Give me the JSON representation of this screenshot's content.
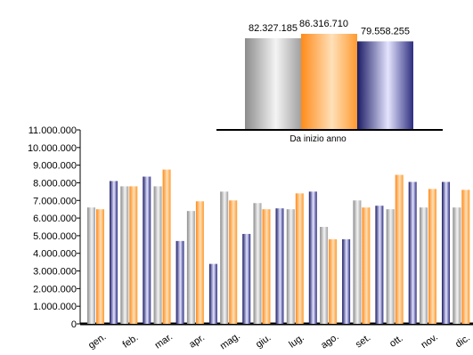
{
  "chart_data": [
    {
      "type": "bar",
      "title": "",
      "xlabel": "Da inizio anno",
      "ylabel": "",
      "series": [
        {
          "values": [
            82327185
          ]
        },
        {
          "values": [
            86316710
          ]
        },
        {
          "values": [
            79558255
          ]
        }
      ],
      "value_labels": [
        "82.327.185",
        "86.316.710",
        "79.558.255"
      ],
      "legend": "none",
      "grid": false
    },
    {
      "type": "bar",
      "title": "",
      "xlabel": "",
      "ylabel": "",
      "categories": [
        "gen.",
        "feb.",
        "mar.",
        "apr.",
        "mag.",
        "giu.",
        "lug.",
        "ago.",
        "set.",
        "ott.",
        "nov.",
        "dic."
      ],
      "ylim": [
        0,
        11000000
      ],
      "yticks": [
        0,
        1000000,
        2000000,
        3000000,
        4000000,
        5000000,
        6000000,
        7000000,
        8000000,
        9000000,
        10000000,
        11000000
      ],
      "ytick_labels": [
        "0",
        "1.000.000",
        "2.000.000",
        "3.000.000",
        "4.000.000",
        "5.000.000",
        "6.000.000",
        "7.000.000",
        "8.000.000",
        "9.000.000",
        "10.000.000",
        "11.000.000"
      ],
      "series": [
        {
          "values": [
            6600000,
            7800000,
            7800000,
            6400000,
            7500000,
            6850000,
            6500000,
            5500000,
            7000000,
            6500000,
            6600000,
            6600000
          ]
        },
        {
          "values": [
            6500000,
            7800000,
            8750000,
            6950000,
            7000000,
            6500000,
            7400000,
            4800000,
            6600000,
            8450000,
            7650000,
            7600000
          ]
        },
        {
          "values": [
            8100000,
            8350000,
            4700000,
            3400000,
            5100000,
            6550000,
            7500000,
            4800000,
            6700000,
            8050000,
            8050000,
            7800000
          ]
        }
      ],
      "legend": "none",
      "grid": false
    }
  ],
  "colors": {
    "series1": [
      "#8c8c8c",
      "#f4f4f4",
      "#a0a0a0"
    ],
    "series2": [
      "#ff8a1a",
      "#ffe0b8",
      "#ff9a30"
    ],
    "series3": [
      "#1c1c66",
      "#e4e4ff",
      "#2e2e80"
    ]
  }
}
